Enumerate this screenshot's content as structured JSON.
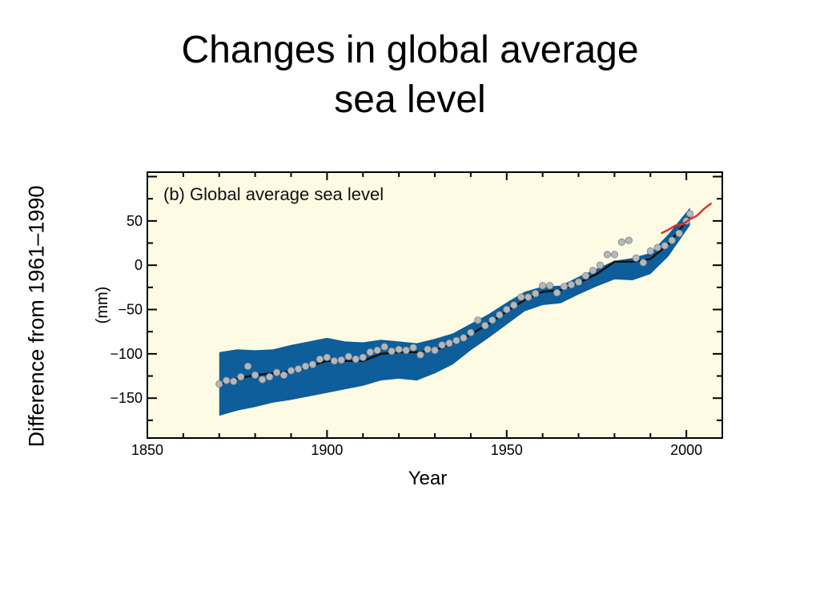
{
  "slide": {
    "title_line1": "Changes in global average",
    "title_line2": "sea level",
    "outer_ylabel": "Difference from 1961–1990"
  },
  "chart_data": {
    "type": "line",
    "panel_label": "(b) Global average sea level",
    "xlabel": "Year",
    "ylabel": "(mm)",
    "xlim": [
      1850,
      2010
    ],
    "ylim": [
      -195,
      105
    ],
    "x_ticks": [
      1850,
      1900,
      1950,
      2000
    ],
    "y_ticks": [
      50,
      0,
      -50,
      -100,
      -150
    ],
    "colors": {
      "background": "#fdfbe3",
      "uncertainty_band": "#0d5e9a",
      "observations": "#b4b8bc",
      "smoothed_line": "#111111",
      "satellite_line": "#e03030"
    },
    "series": [
      {
        "kind": "band",
        "x": [
          1870,
          1875,
          1880,
          1885,
          1890,
          1895,
          1900,
          1905,
          1910,
          1915,
          1920,
          1925,
          1930,
          1935,
          1940,
          1945,
          1950,
          1955,
          1960,
          1965,
          1970,
          1975,
          1980,
          1985,
          1990,
          1995,
          2001
        ],
        "upper": [
          -98,
          -95,
          -96,
          -95,
          -90,
          -86,
          -82,
          -86,
          -87,
          -84,
          -86,
          -88,
          -83,
          -77,
          -66,
          -55,
          -42,
          -30,
          -24,
          -23,
          -13,
          -4,
          5,
          8,
          14,
          35,
          65
        ],
        "lower": [
          -170,
          -164,
          -160,
          -155,
          -152,
          -148,
          -144,
          -140,
          -136,
          -130,
          -128,
          -130,
          -122,
          -112,
          -96,
          -82,
          -67,
          -52,
          -45,
          -43,
          -33,
          -24,
          -16,
          -17,
          -10,
          10,
          45
        ]
      },
      {
        "kind": "smoothed",
        "x": [
          1870,
          1875,
          1880,
          1885,
          1890,
          1895,
          1900,
          1905,
          1910,
          1915,
          1920,
          1925,
          1930,
          1935,
          1940,
          1945,
          1950,
          1955,
          1960,
          1965,
          1970,
          1975,
          1980,
          1985,
          1990,
          1995,
          2001
        ],
        "y": [
          -134,
          -128,
          -124,
          -122,
          -120,
          -114,
          -108,
          -108,
          -108,
          -100,
          -98,
          -98,
          -96,
          -88,
          -78,
          -66,
          -52,
          -39,
          -30,
          -28,
          -20,
          -10,
          4,
          4,
          7,
          24,
          55
        ]
      },
      {
        "kind": "observations",
        "x": [
          1870,
          1872,
          1874,
          1876,
          1878,
          1880,
          1882,
          1884,
          1886,
          1888,
          1890,
          1892,
          1894,
          1896,
          1898,
          1900,
          1902,
          1904,
          1906,
          1908,
          1910,
          1912,
          1914,
          1916,
          1918,
          1920,
          1922,
          1924,
          1926,
          1928,
          1930,
          1932,
          1934,
          1936,
          1938,
          1940,
          1942,
          1944,
          1946,
          1948,
          1950,
          1952,
          1954,
          1956,
          1958,
          1960,
          1962,
          1964,
          1966,
          1968,
          1970,
          1972,
          1974,
          1976,
          1978,
          1980,
          1982,
          1984,
          1986,
          1988,
          1990,
          1992,
          1994,
          1996,
          1998,
          2000,
          2001
        ],
        "y": [
          -134,
          -130,
          -131,
          -126,
          -114,
          -124,
          -129,
          -126,
          -121,
          -124,
          -119,
          -117,
          -114,
          -112,
          -106,
          -104,
          -108,
          -107,
          -103,
          -106,
          -104,
          -98,
          -96,
          -92,
          -97,
          -95,
          -96,
          -93,
          -101,
          -95,
          -96,
          -90,
          -88,
          -85,
          -82,
          -76,
          -62,
          -68,
          -62,
          -56,
          -50,
          -45,
          -36,
          -36,
          -32,
          -23,
          -23,
          -31,
          -24,
          -22,
          -19,
          -12,
          -6,
          0,
          12,
          12,
          26,
          28,
          8,
          3,
          16,
          20,
          22,
          28,
          36,
          50,
          58
        ]
      },
      {
        "kind": "satellite",
        "x": [
          1993,
          1995,
          1997,
          1999,
          2001,
          2003,
          2005,
          2007
        ],
        "y": [
          36,
          40,
          45,
          46,
          52,
          56,
          64,
          70
        ]
      }
    ]
  }
}
